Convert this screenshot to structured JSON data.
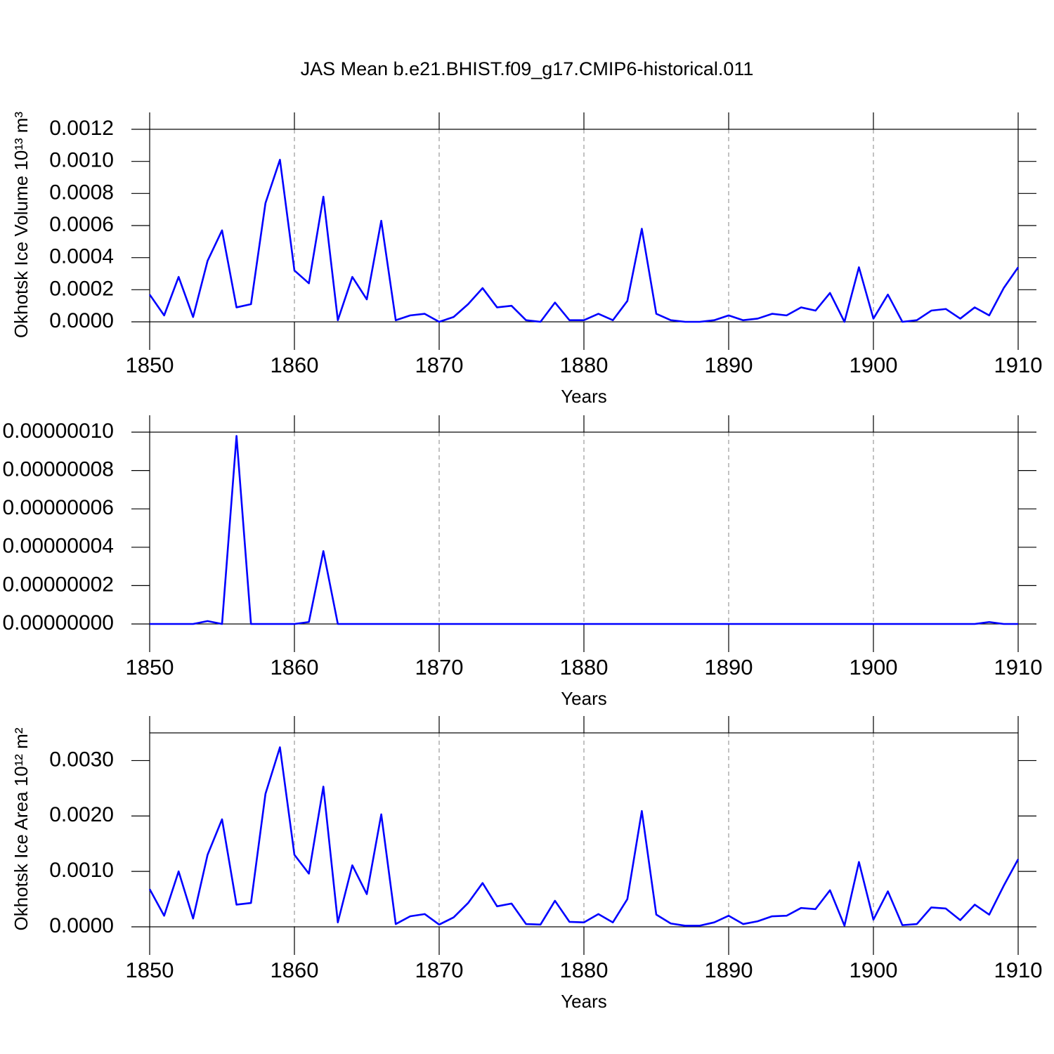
{
  "chart_data": [
    {
      "type": "line",
      "title": "JAS Mean b.e21.BHIST.f09_g17.CMIP6-historical.011",
      "xlabel": "Years",
      "ylabel": "Okhotsk Ice Volume 10¹³ m³",
      "color": "#0000ff",
      "xgrid": true,
      "x": [
        1850,
        1851,
        1852,
        1853,
        1854,
        1855,
        1856,
        1857,
        1858,
        1859,
        1860,
        1861,
        1862,
        1863,
        1864,
        1865,
        1866,
        1867,
        1868,
        1869,
        1870,
        1871,
        1872,
        1873,
        1874,
        1875,
        1876,
        1877,
        1878,
        1879,
        1880,
        1881,
        1882,
        1883,
        1884,
        1885,
        1886,
        1887,
        1888,
        1889,
        1890,
        1891,
        1892,
        1893,
        1894,
        1895,
        1896,
        1897,
        1898,
        1899,
        1900,
        1901,
        1902,
        1903,
        1904,
        1905,
        1906,
        1907,
        1908,
        1909,
        1910
      ],
      "values": [
        0.00017,
        4e-05,
        0.00028,
        3e-05,
        0.00038,
        0.00057,
        9e-05,
        0.00011,
        0.00074,
        0.00101,
        0.00032,
        0.00024,
        0.00078,
        1e-05,
        0.00028,
        0.00014,
        0.00063,
        1e-05,
        4e-05,
        5e-05,
        0.0,
        3e-05,
        0.00011,
        0.00021,
        9e-05,
        0.0001,
        1e-05,
        0.0,
        0.00012,
        1e-05,
        1e-05,
        5e-05,
        1e-05,
        0.00013,
        0.00058,
        5e-05,
        1e-05,
        0.0,
        0.0,
        1e-05,
        4e-05,
        1e-05,
        2e-05,
        5e-05,
        4e-05,
        9e-05,
        7e-05,
        0.00018,
        0.0,
        0.00034,
        2e-05,
        0.00017,
        0.0,
        1e-05,
        7e-05,
        8e-05,
        2e-05,
        9e-05,
        4e-05,
        0.00021,
        0.00034
      ],
      "xlim": [
        1850,
        1910
      ],
      "xticks": [
        1850,
        1860,
        1870,
        1880,
        1890,
        1900,
        1910
      ],
      "ylim": [
        0,
        0.0012
      ],
      "yticks": [
        {
          "value": 0,
          "label": "0.0000"
        },
        {
          "value": 0.0002,
          "label": "0.0002"
        },
        {
          "value": 0.0004,
          "label": "0.0004"
        },
        {
          "value": 0.0006,
          "label": "0.0006"
        },
        {
          "value": 0.0008,
          "label": "0.0008"
        },
        {
          "value": 0.001,
          "label": "0.0010"
        },
        {
          "value": 0.0012,
          "label": "0.0012"
        }
      ]
    },
    {
      "type": "line",
      "xlabel": "Years",
      "color": "#0000ff",
      "xgrid": true,
      "x": [
        1850,
        1851,
        1852,
        1853,
        1854,
        1855,
        1856,
        1857,
        1858,
        1859,
        1860,
        1861,
        1862,
        1863,
        1864,
        1865,
        1866,
        1867,
        1868,
        1869,
        1870,
        1871,
        1872,
        1873,
        1874,
        1875,
        1876,
        1877,
        1878,
        1879,
        1880,
        1881,
        1882,
        1883,
        1884,
        1885,
        1886,
        1887,
        1888,
        1889,
        1890,
        1891,
        1892,
        1893,
        1894,
        1895,
        1896,
        1897,
        1898,
        1899,
        1900,
        1901,
        1902,
        1903,
        1904,
        1905,
        1906,
        1907,
        1908,
        1909,
        1910
      ],
      "values": [
        0,
        0,
        0,
        0,
        1.5e-09,
        0,
        9.8e-08,
        0,
        0,
        0,
        0,
        1e-09,
        3.8e-08,
        0,
        0,
        0,
        0,
        0,
        0,
        0,
        0,
        0,
        0,
        0,
        0,
        0,
        0,
        0,
        0,
        0,
        0,
        0,
        0,
        0,
        0,
        0,
        0,
        0,
        0,
        0,
        0,
        0,
        0,
        0,
        0,
        0,
        0,
        0,
        0,
        0,
        0,
        0,
        0,
        0,
        0,
        0,
        0,
        0,
        1e-09,
        0,
        0
      ],
      "xlim": [
        1850,
        1910
      ],
      "xticks": [
        1850,
        1860,
        1870,
        1880,
        1890,
        1900,
        1910
      ],
      "ylim": [
        0,
        1e-07
      ],
      "yticks": [
        {
          "value": 0,
          "label": "0.00000000"
        },
        {
          "value": 2e-08,
          "label": "0.00000002"
        },
        {
          "value": 4e-08,
          "label": "0.00000004"
        },
        {
          "value": 6e-08,
          "label": "0.00000006"
        },
        {
          "value": 8e-08,
          "label": "0.00000008"
        },
        {
          "value": 1e-07,
          "label": "0.00000010"
        }
      ]
    },
    {
      "type": "line",
      "xlabel": "Years",
      "ylabel": "Okhotsk Ice Area 10¹² m²",
      "color": "#0000ff",
      "xgrid": true,
      "x": [
        1850,
        1851,
        1852,
        1853,
        1854,
        1855,
        1856,
        1857,
        1858,
        1859,
        1860,
        1861,
        1862,
        1863,
        1864,
        1865,
        1866,
        1867,
        1868,
        1869,
        1870,
        1871,
        1872,
        1873,
        1874,
        1875,
        1876,
        1877,
        1878,
        1879,
        1880,
        1881,
        1882,
        1883,
        1884,
        1885,
        1886,
        1887,
        1888,
        1889,
        1890,
        1891,
        1892,
        1893,
        1894,
        1895,
        1896,
        1897,
        1898,
        1899,
        1900,
        1901,
        1902,
        1903,
        1904,
        1905,
        1906,
        1907,
        1908,
        1909,
        1910
      ],
      "values": [
        0.00068,
        0.0002,
        0.001,
        0.00015,
        0.0013,
        0.00194,
        0.0004,
        0.00043,
        0.0024,
        0.00324,
        0.0013,
        0.00096,
        0.00253,
        8e-05,
        0.00111,
        0.00059,
        0.00203,
        5e-05,
        0.00019,
        0.00023,
        4e-05,
        0.00017,
        0.00043,
        0.00079,
        0.00037,
        0.00042,
        5e-05,
        4e-05,
        0.00047,
        9e-05,
        8e-05,
        0.00023,
        8e-05,
        0.0005,
        0.00209,
        0.00022,
        6e-05,
        2e-05,
        2e-05,
        8e-05,
        0.0002,
        5e-05,
        0.0001,
        0.00019,
        0.0002,
        0.00034,
        0.00032,
        0.00066,
        2e-05,
        0.00117,
        0.00013,
        0.00064,
        3e-05,
        5e-05,
        0.00035,
        0.00033,
        0.00012,
        0.0004,
        0.00022,
        0.00074,
        0.00122
      ],
      "xlim": [
        1850,
        1910
      ],
      "xticks": [
        1850,
        1860,
        1870,
        1880,
        1890,
        1900,
        1910
      ],
      "ylim": [
        0,
        0.0035
      ],
      "yticks": [
        {
          "value": 0,
          "label": "0.0000"
        },
        {
          "value": 0.001,
          "label": "0.0010"
        },
        {
          "value": 0.002,
          "label": "0.0020"
        },
        {
          "value": 0.003,
          "label": "0.0030"
        }
      ]
    }
  ]
}
